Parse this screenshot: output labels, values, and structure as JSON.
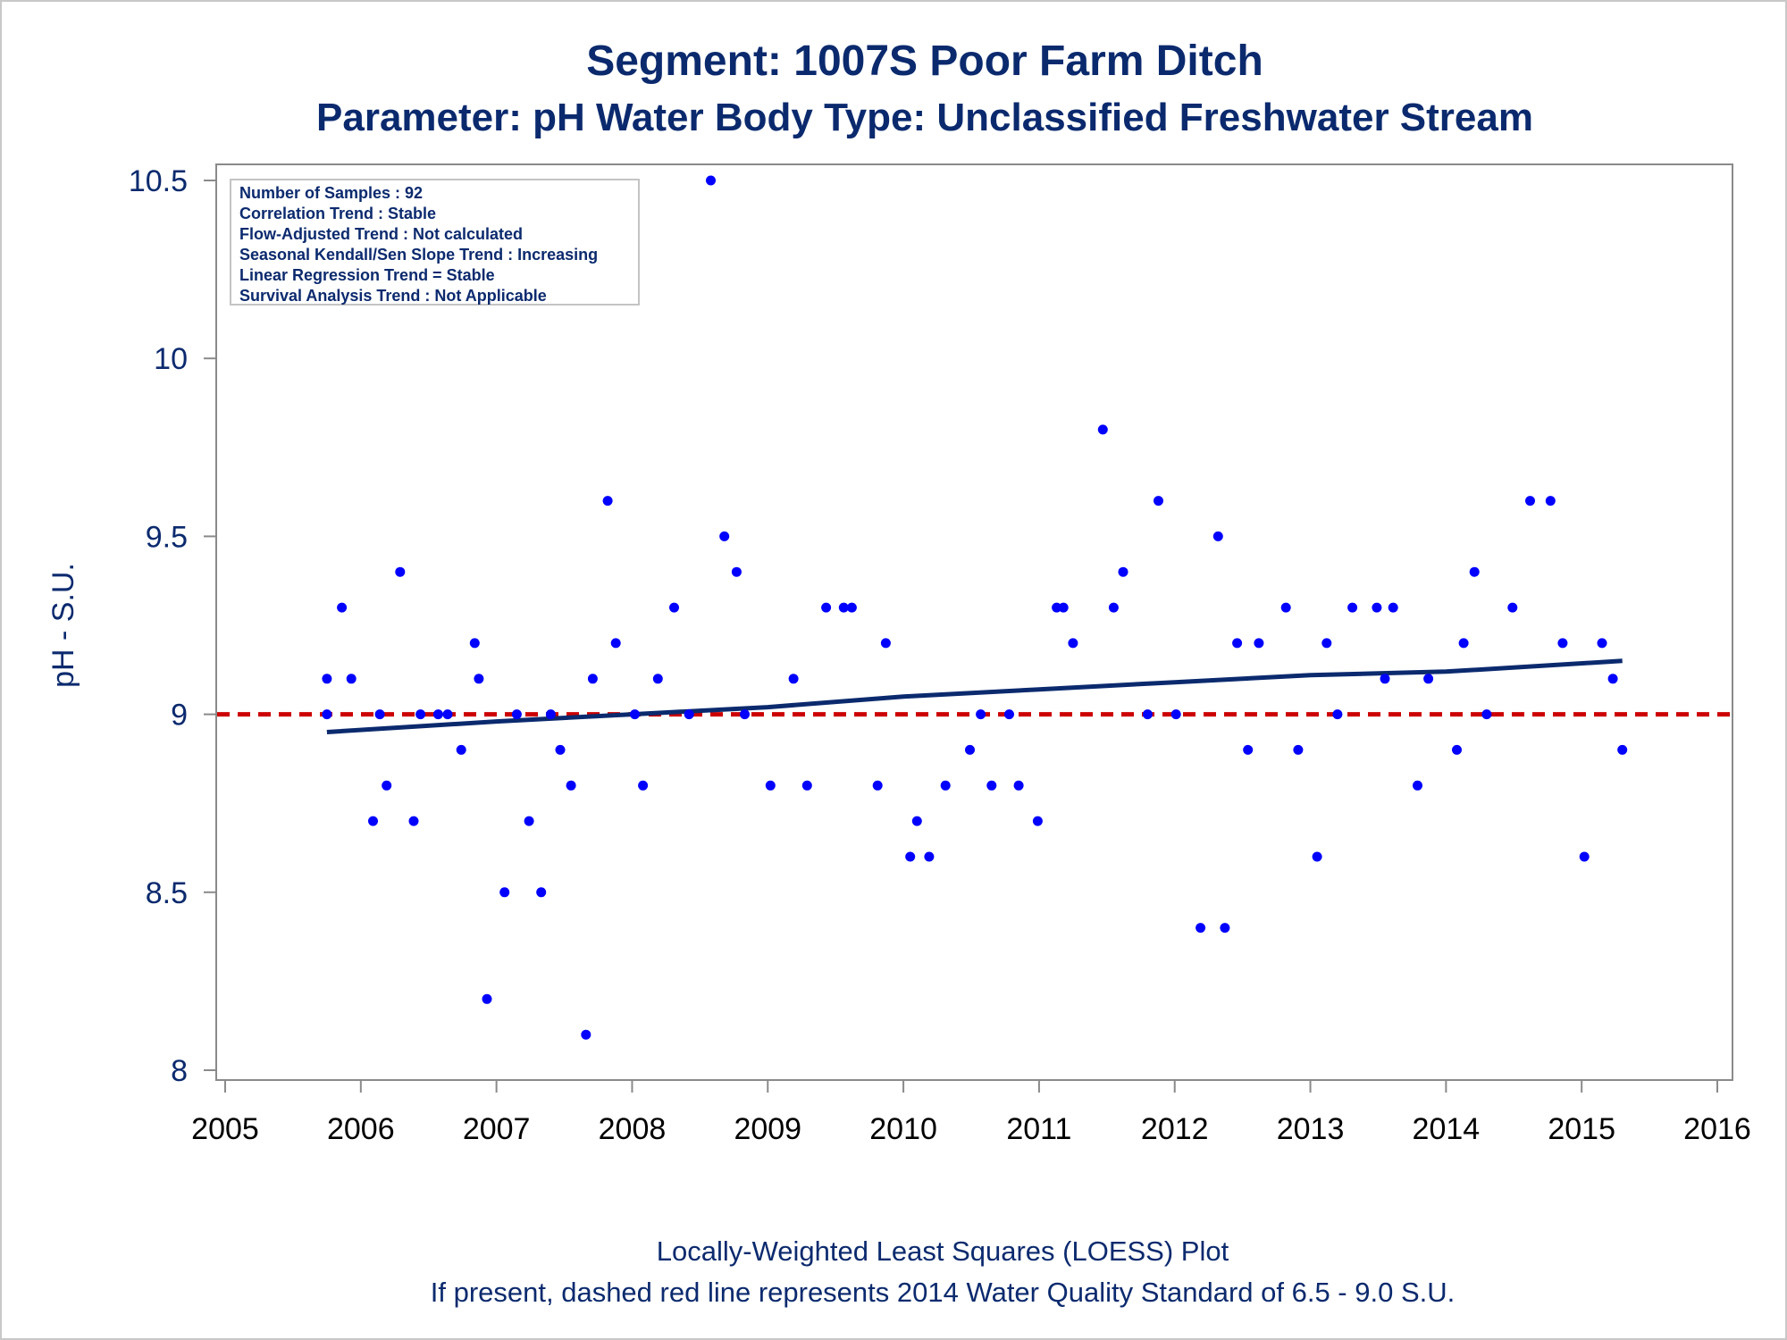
{
  "chart_data": {
    "type": "scatter",
    "title": "Segment: 1007S  Poor Farm Ditch",
    "subtitle": "Parameter: pH   Water Body Type: Unclassified Freshwater Stream",
    "ylabel": "pH - S.U.",
    "xlabel": "",
    "xlim": [
      2005,
      2016
    ],
    "ylim": [
      8,
      10.5
    ],
    "x_ticks": [
      "2005",
      "2006",
      "2007",
      "2008",
      "2009",
      "2010",
      "2011",
      "2012",
      "2013",
      "2014",
      "2015",
      "2016"
    ],
    "y_ticks": [
      "8",
      "8.5",
      "9",
      "9.5",
      "10",
      "10.5"
    ],
    "stats_box": [
      "Number of Samples : 92",
      "Correlation Trend : Stable",
      "Flow-Adjusted Trend : Not calculated",
      "Seasonal Kendall/Sen Slope Trend : Increasing",
      "Linear Regression Trend = Stable",
      "Survival Analysis Trend : Not Applicable"
    ],
    "footnotes": [
      "Locally-Weighted Least Squares (LOESS) Plot",
      "If present, dashed red line represents 2014 Water Quality Standard of 6.5 - 9.0 S.U."
    ],
    "reference_line": {
      "y": 9.0,
      "style": "dashed",
      "color": "#cc0000"
    },
    "loess": {
      "color": "#0b2a6e",
      "points": [
        [
          2005.75,
          8.95
        ],
        [
          2007.0,
          8.98
        ],
        [
          2008.0,
          9.0
        ],
        [
          2009.0,
          9.02
        ],
        [
          2010.0,
          9.05
        ],
        [
          2011.0,
          9.07
        ],
        [
          2012.0,
          9.09
        ],
        [
          2013.0,
          9.11
        ],
        [
          2014.0,
          9.12
        ],
        [
          2015.3,
          9.15
        ]
      ]
    },
    "points_color": "#0000ff",
    "points": [
      [
        2005.75,
        9.1
      ],
      [
        2005.75,
        9.0
      ],
      [
        2005.86,
        9.3
      ],
      [
        2005.93,
        9.1
      ],
      [
        2006.09,
        8.7
      ],
      [
        2006.14,
        9.0
      ],
      [
        2006.19,
        8.8
      ],
      [
        2006.29,
        9.4
      ],
      [
        2006.39,
        8.7
      ],
      [
        2006.44,
        9.0
      ],
      [
        2006.57,
        9.0
      ],
      [
        2006.64,
        9.0
      ],
      [
        2006.74,
        8.9
      ],
      [
        2006.84,
        9.2
      ],
      [
        2006.87,
        9.1
      ],
      [
        2006.93,
        8.2
      ],
      [
        2007.06,
        8.5
      ],
      [
        2007.15,
        9.0
      ],
      [
        2007.24,
        8.7
      ],
      [
        2007.33,
        8.5
      ],
      [
        2007.4,
        9.0
      ],
      [
        2007.47,
        8.9
      ],
      [
        2007.55,
        8.8
      ],
      [
        2007.66,
        8.1
      ],
      [
        2007.71,
        9.1
      ],
      [
        2007.82,
        9.6
      ],
      [
        2007.88,
        9.2
      ],
      [
        2008.02,
        9.0
      ],
      [
        2008.08,
        8.8
      ],
      [
        2008.19,
        9.1
      ],
      [
        2008.31,
        9.3
      ],
      [
        2008.42,
        9.0
      ],
      [
        2008.58,
        10.5
      ],
      [
        2008.68,
        9.5
      ],
      [
        2008.77,
        9.4
      ],
      [
        2008.83,
        9.0
      ],
      [
        2009.02,
        8.8
      ],
      [
        2009.19,
        9.1
      ],
      [
        2009.29,
        8.8
      ],
      [
        2009.43,
        9.3
      ],
      [
        2009.56,
        9.3
      ],
      [
        2009.62,
        9.3
      ],
      [
        2009.81,
        8.8
      ],
      [
        2009.87,
        9.2
      ],
      [
        2010.05,
        8.6
      ],
      [
        2010.1,
        8.7
      ],
      [
        2010.19,
        8.6
      ],
      [
        2010.31,
        8.8
      ],
      [
        2010.49,
        8.9
      ],
      [
        2010.57,
        9.0
      ],
      [
        2010.65,
        8.8
      ],
      [
        2010.78,
        9.0
      ],
      [
        2010.85,
        8.8
      ],
      [
        2010.99,
        8.7
      ],
      [
        2011.13,
        9.3
      ],
      [
        2011.18,
        9.3
      ],
      [
        2011.25,
        9.2
      ],
      [
        2011.47,
        9.8
      ],
      [
        2011.55,
        9.3
      ],
      [
        2011.62,
        9.4
      ],
      [
        2011.8,
        9.0
      ],
      [
        2011.88,
        9.6
      ],
      [
        2012.01,
        9.0
      ],
      [
        2012.19,
        8.4
      ],
      [
        2012.32,
        9.5
      ],
      [
        2012.37,
        8.4
      ],
      [
        2012.46,
        9.2
      ],
      [
        2012.54,
        8.9
      ],
      [
        2012.62,
        9.2
      ],
      [
        2012.82,
        9.3
      ],
      [
        2012.91,
        8.9
      ],
      [
        2013.05,
        8.6
      ],
      [
        2013.12,
        9.2
      ],
      [
        2013.2,
        9.0
      ],
      [
        2013.31,
        9.3
      ],
      [
        2013.49,
        9.3
      ],
      [
        2013.55,
        9.1
      ],
      [
        2013.61,
        9.3
      ],
      [
        2013.79,
        8.8
      ],
      [
        2013.87,
        9.1
      ],
      [
        2014.08,
        8.9
      ],
      [
        2014.13,
        9.2
      ],
      [
        2014.21,
        9.4
      ],
      [
        2014.3,
        9.0
      ],
      [
        2014.49,
        9.3
      ],
      [
        2014.62,
        9.6
      ],
      [
        2014.77,
        9.6
      ],
      [
        2014.86,
        9.2
      ],
      [
        2015.02,
        8.6
      ],
      [
        2015.15,
        9.2
      ],
      [
        2015.23,
        9.1
      ],
      [
        2015.3,
        8.9
      ]
    ]
  }
}
